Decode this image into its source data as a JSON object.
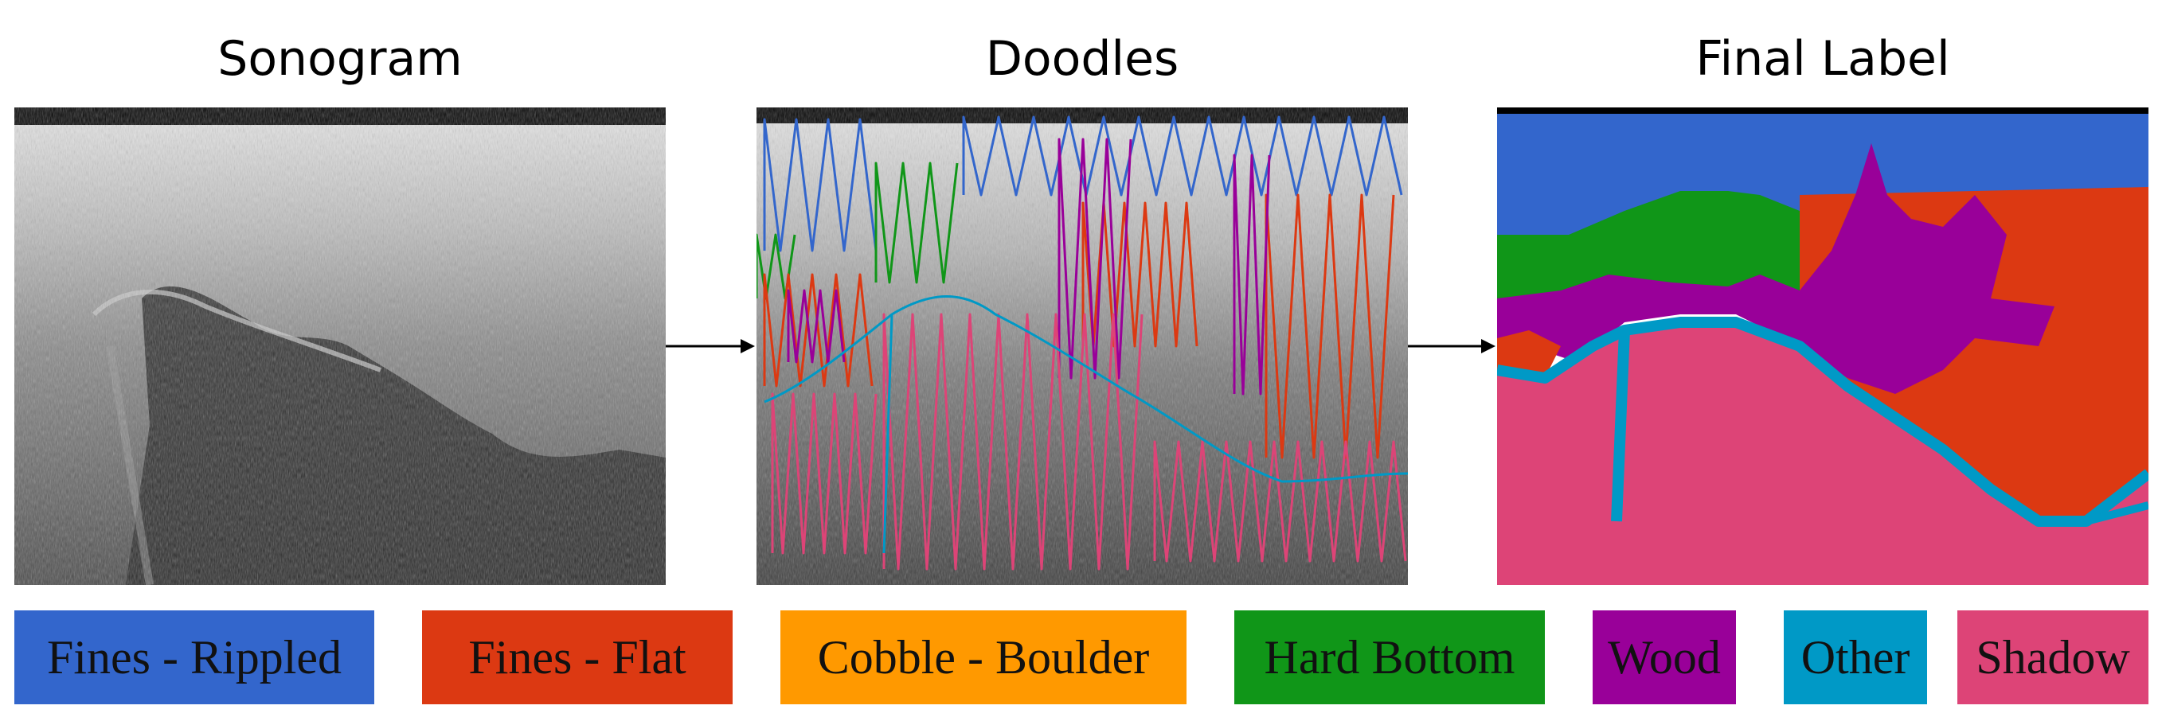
{
  "panels": [
    {
      "title": "Sonogram"
    },
    {
      "title": "Doodles"
    },
    {
      "title": "Final Label"
    }
  ],
  "legend": [
    {
      "label": "Fines - Rippled",
      "color": "#3366cc"
    },
    {
      "label": "Fines - Flat",
      "color": "#dc3912"
    },
    {
      "label": "Cobble - Boulder",
      "color": "#ff9900"
    },
    {
      "label": "Hard Bottom",
      "color": "#109618"
    },
    {
      "label": "Wood",
      "color": "#990099"
    },
    {
      "label": "Other",
      "color": "#0099c6"
    },
    {
      "label": "Shadow",
      "color": "#dd4477"
    }
  ]
}
